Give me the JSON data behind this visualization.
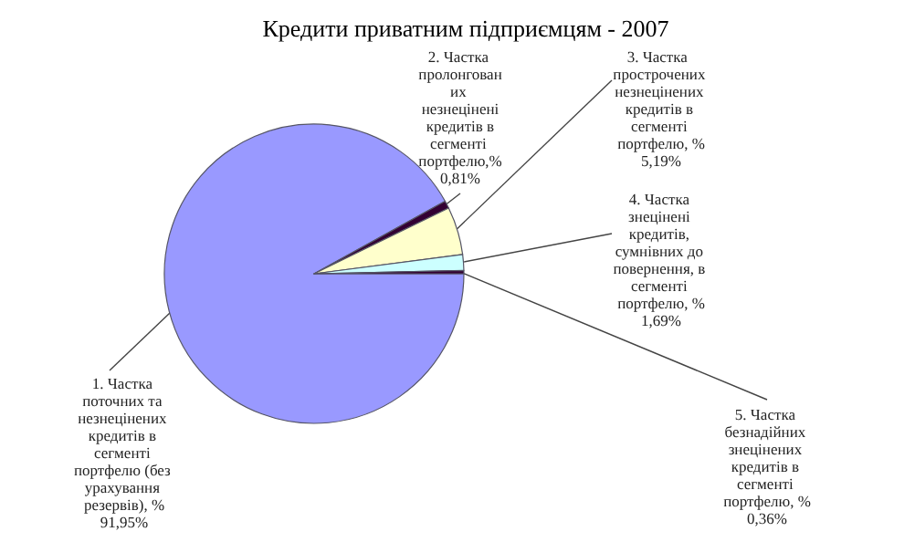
{
  "chart_data": {
    "type": "pie",
    "title": "Кредити приватним підприємцям - 2007",
    "categories": [
      "1. Частка поточних та незнецінених кредитів в сегменті портфелю (без урахування резервів), %",
      "2. Частка пролонгованих незнецінені кредитів в сегменті портфелю,%",
      "3. Частка  прострочених незнецінених кредитів в сегменті портфелю, %",
      "4. Частка знецінені кредитів, сумнівних до повернення, в сегменті портфелю, %",
      "5. Частка безнадійних знецінених кредитів в сегменті портфелю, %"
    ],
    "values": [
      91.95,
      0.81,
      5.19,
      1.69,
      0.36
    ],
    "value_labels": [
      "91,95%",
      "0,81%",
      "5,19%",
      "1,69%",
      "0,36%"
    ],
    "colors": [
      "#9999ff",
      "#330033",
      "#ffffcc",
      "#ccffff",
      "#330033"
    ],
    "legend": false
  }
}
